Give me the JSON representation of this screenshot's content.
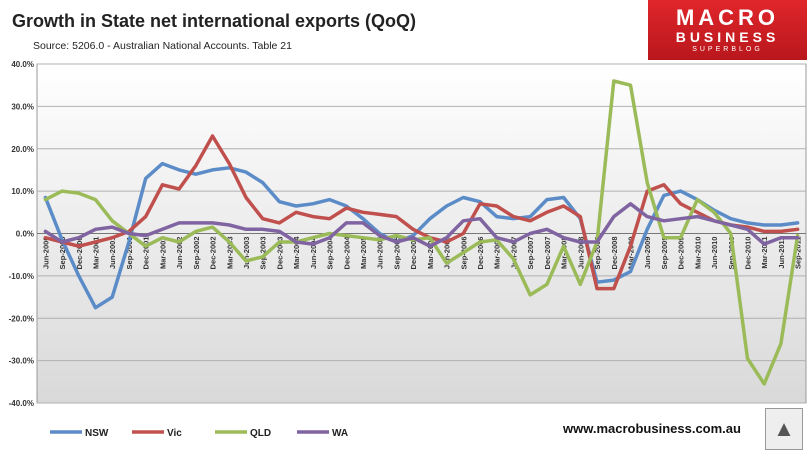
{
  "title": "Growth in State net international exports (QoQ)",
  "source": "Source: 5206.0 - Australian National Accounts. Table 21",
  "logo": {
    "line1": "MACRO",
    "line2": "BUSINESS",
    "line3": "SUPERBLOG",
    "color": "#d21f25"
  },
  "footer_url": "www.macrobusiness.com.au",
  "wolf_icon": "wolf-head-icon",
  "chart_data": {
    "type": "line",
    "title": "Growth in State net international exports (QoQ)",
    "ylim": [
      -40,
      40
    ],
    "ytick_labels": [
      "40.0%",
      "30.0%",
      "20.0%",
      "10.0%",
      "0.0%",
      "-10.0%",
      "-20.0%",
      "-30.0%",
      "-40.0%"
    ],
    "ytick_values": [
      40,
      30,
      20,
      10,
      0,
      -10,
      -20,
      -30,
      -40
    ],
    "grid": true,
    "legend_position": "bottom",
    "categories": [
      "Jun-2000",
      "Sep-2000",
      "Dec-2000",
      "Mar-2001",
      "Jun-2001",
      "Sep-2001",
      "Dec-2001",
      "Mar-2002",
      "Jun-2002",
      "Sep-2002",
      "Dec-2002",
      "Mar-2003",
      "Jun-2003",
      "Sep-2003",
      "Dec-2003",
      "Mar-2004",
      "Jun-2004",
      "Sep-2004",
      "Dec-2004",
      "Mar-2005",
      "Jun-2005",
      "Sep-2005",
      "Dec-2005",
      "Mar-2006",
      "Jun-2006",
      "Sep-2006",
      "Dec-2006",
      "Mar-2007",
      "Jun-2007",
      "Sep-2007",
      "Dec-2007",
      "Mar-2008",
      "Jun-2008",
      "Sep-2008",
      "Dec-2008",
      "Mar-2009",
      "Jun-2009",
      "Sep-2009",
      "Dec-2009",
      "Mar-2010",
      "Jun-2010",
      "Sep-2010",
      "Dec-2010",
      "Mar-2011",
      "Jun-2011",
      "Sep-2011"
    ],
    "tick_labels": [
      "Jun-2000",
      "Sep-2000",
      "Dec-2000",
      "Mar-2001",
      "Jun-2001",
      "Sep-2001",
      "Dec-2001",
      "Mar-2002",
      "Jun-2002",
      "Sep-2002",
      "Dec-2002",
      "Mar-2003",
      "Jun-2003",
      "Sep-2003",
      "Dec-2003",
      "Mar-2004",
      "Jun-2004",
      "Sep-2004",
      "Dec-2004",
      "Mar-2005",
      "Jun-2005",
      "Sep-2005",
      "Dec-2005",
      "Mar-2006",
      "Jun-2006",
      "Sep-2006",
      "Dec-2006",
      "Mar-2007",
      "Jun-2007",
      "Sep-2007",
      "Dec-2007",
      "Mar-2008",
      "Jun-2008",
      "Sep-2008",
      "Dec-2008",
      "Mar-2009",
      "Jun-2009",
      "Sep-2009",
      "Dec-2009",
      "Mar-2010",
      "Jun-2010",
      "Sep-2010",
      "Dec-2010",
      "Mar-2011",
      "Jun-2011",
      "Sep-2011"
    ],
    "series": [
      {
        "name": "NSW",
        "color": "#5b8cc8",
        "values": [
          8.5,
          -1.5,
          -10,
          -17.5,
          -15,
          -2,
          13,
          16.5,
          15,
          14,
          15,
          15.5,
          14.5,
          12,
          7.5,
          6.5,
          7,
          8,
          6.5,
          3.5,
          0,
          -2,
          -0.5,
          3.5,
          6.5,
          8.5,
          7.5,
          4,
          3.5,
          4,
          8,
          8.5,
          3.5,
          -11.5,
          -11,
          -9,
          1,
          9,
          10,
          8,
          5.5,
          3.5,
          2.5,
          2,
          2,
          2.5
        ]
      },
      {
        "name": "Vic",
        "color": "#c0504d",
        "values": [
          -1,
          -2,
          -3,
          -2,
          -1,
          0.5,
          4,
          11.5,
          10.5,
          16,
          23,
          16.5,
          8.5,
          3.5,
          2.5,
          5,
          4,
          3.5,
          6,
          5,
          4.5,
          4,
          1,
          -1,
          -2,
          0,
          7,
          6.5,
          4,
          3,
          5,
          6.5,
          4,
          -13,
          -13,
          -3,
          10,
          11.5,
          7,
          5,
          3,
          2,
          1.5,
          0.5,
          0.5,
          1
        ]
      },
      {
        "name": "QLD",
        "color": "#9bbb59",
        "values": [
          8,
          10,
          9.5,
          8,
          3,
          0,
          -3,
          -1,
          -2,
          0.5,
          1.5,
          -2,
          -6.5,
          -5.5,
          -2,
          -2,
          -1,
          0,
          -0.5,
          -1,
          -1.5,
          -0.5,
          -1.5,
          -1,
          -7,
          -4.5,
          -2,
          -1.5,
          -6,
          -14.5,
          -12,
          -3,
          -12,
          -2,
          36,
          35,
          12,
          -1,
          -1,
          8,
          5,
          0,
          -29.5,
          -35.5,
          -26,
          -0.5
        ]
      },
      {
        "name": "WA",
        "color": "#8064a2",
        "values": [
          0.5,
          -2,
          -1,
          1,
          1.5,
          0,
          -0.5,
          1,
          2.5,
          2.5,
          2.5,
          2,
          1,
          1,
          0.5,
          -2,
          -2.5,
          -1,
          2.5,
          2.5,
          -0.5,
          -2,
          -1,
          -3,
          -1,
          3,
          3.5,
          -1,
          -2,
          0,
          1,
          -1,
          -2,
          -2,
          4,
          7,
          4,
          3,
          3.5,
          4,
          3,
          2,
          1,
          -2.5,
          -1,
          -1
        ]
      }
    ]
  }
}
